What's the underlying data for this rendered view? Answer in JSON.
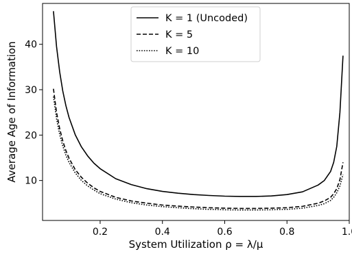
{
  "chart_data": {
    "type": "line",
    "title": "",
    "xlabel": "System Utilization ρ = λ/μ",
    "ylabel": "Average Age of Information",
    "xlim": [
      0.015,
      1.0
    ],
    "ylim": [
      1.2,
      49.0
    ],
    "xticks": [
      0.2,
      0.4,
      0.6,
      0.8,
      1.0
    ],
    "xtick_labels": [
      "0.2",
      "0.4",
      "0.6",
      "0.8",
      "1.0"
    ],
    "yticks": [
      10,
      20,
      30,
      40
    ],
    "ytick_labels": [
      "10",
      "20",
      "30",
      "40"
    ],
    "grid": false,
    "legend_position": "top-center",
    "x": [
      0.05,
      0.06,
      0.07,
      0.08,
      0.09,
      0.1,
      0.12,
      0.14,
      0.16,
      0.18,
      0.2,
      0.25,
      0.3,
      0.35,
      0.4,
      0.45,
      0.5,
      0.55,
      0.6,
      0.65,
      0.7,
      0.75,
      0.8,
      0.85,
      0.9,
      0.92,
      0.94,
      0.95,
      0.96,
      0.97,
      0.98
    ],
    "series": [
      {
        "name": "K = 1 (Uncoded)",
        "legend_label": "K = 1 (Uncoded)",
        "style": "solid",
        "values": [
          47.3,
          39.5,
          33.9,
          29.7,
          26.5,
          23.9,
          20.1,
          17.4,
          15.4,
          13.8,
          12.6,
          10.4,
          9.1,
          8.2,
          7.6,
          7.2,
          6.9,
          6.7,
          6.55,
          6.5,
          6.5,
          6.6,
          6.9,
          7.5,
          9.0,
          10.0,
          12.0,
          14.0,
          17.5,
          25.0,
          37.5
        ]
      },
      {
        "name": "K = 5",
        "legend_label": "K = 5",
        "style": "dashed",
        "values": [
          30.2,
          25.0,
          21.4,
          18.7,
          16.6,
          14.9,
          12.4,
          10.7,
          9.4,
          8.4,
          7.6,
          6.3,
          5.5,
          5.0,
          4.6,
          4.35,
          4.15,
          4.0,
          3.9,
          3.85,
          3.85,
          3.9,
          4.0,
          4.3,
          5.0,
          5.5,
          6.3,
          7.1,
          8.2,
          10.2,
          14.0
        ]
      },
      {
        "name": "K = 10",
        "legend_label": "K = 10",
        "style": "dotted",
        "values": [
          28.5,
          23.6,
          20.1,
          17.6,
          15.6,
          14.0,
          11.7,
          10.0,
          8.8,
          7.9,
          7.1,
          5.9,
          5.1,
          4.6,
          4.25,
          4.0,
          3.8,
          3.65,
          3.55,
          3.5,
          3.5,
          3.55,
          3.65,
          3.9,
          4.5,
          4.9,
          5.6,
          6.3,
          7.3,
          8.8,
          11.3
        ]
      }
    ]
  }
}
